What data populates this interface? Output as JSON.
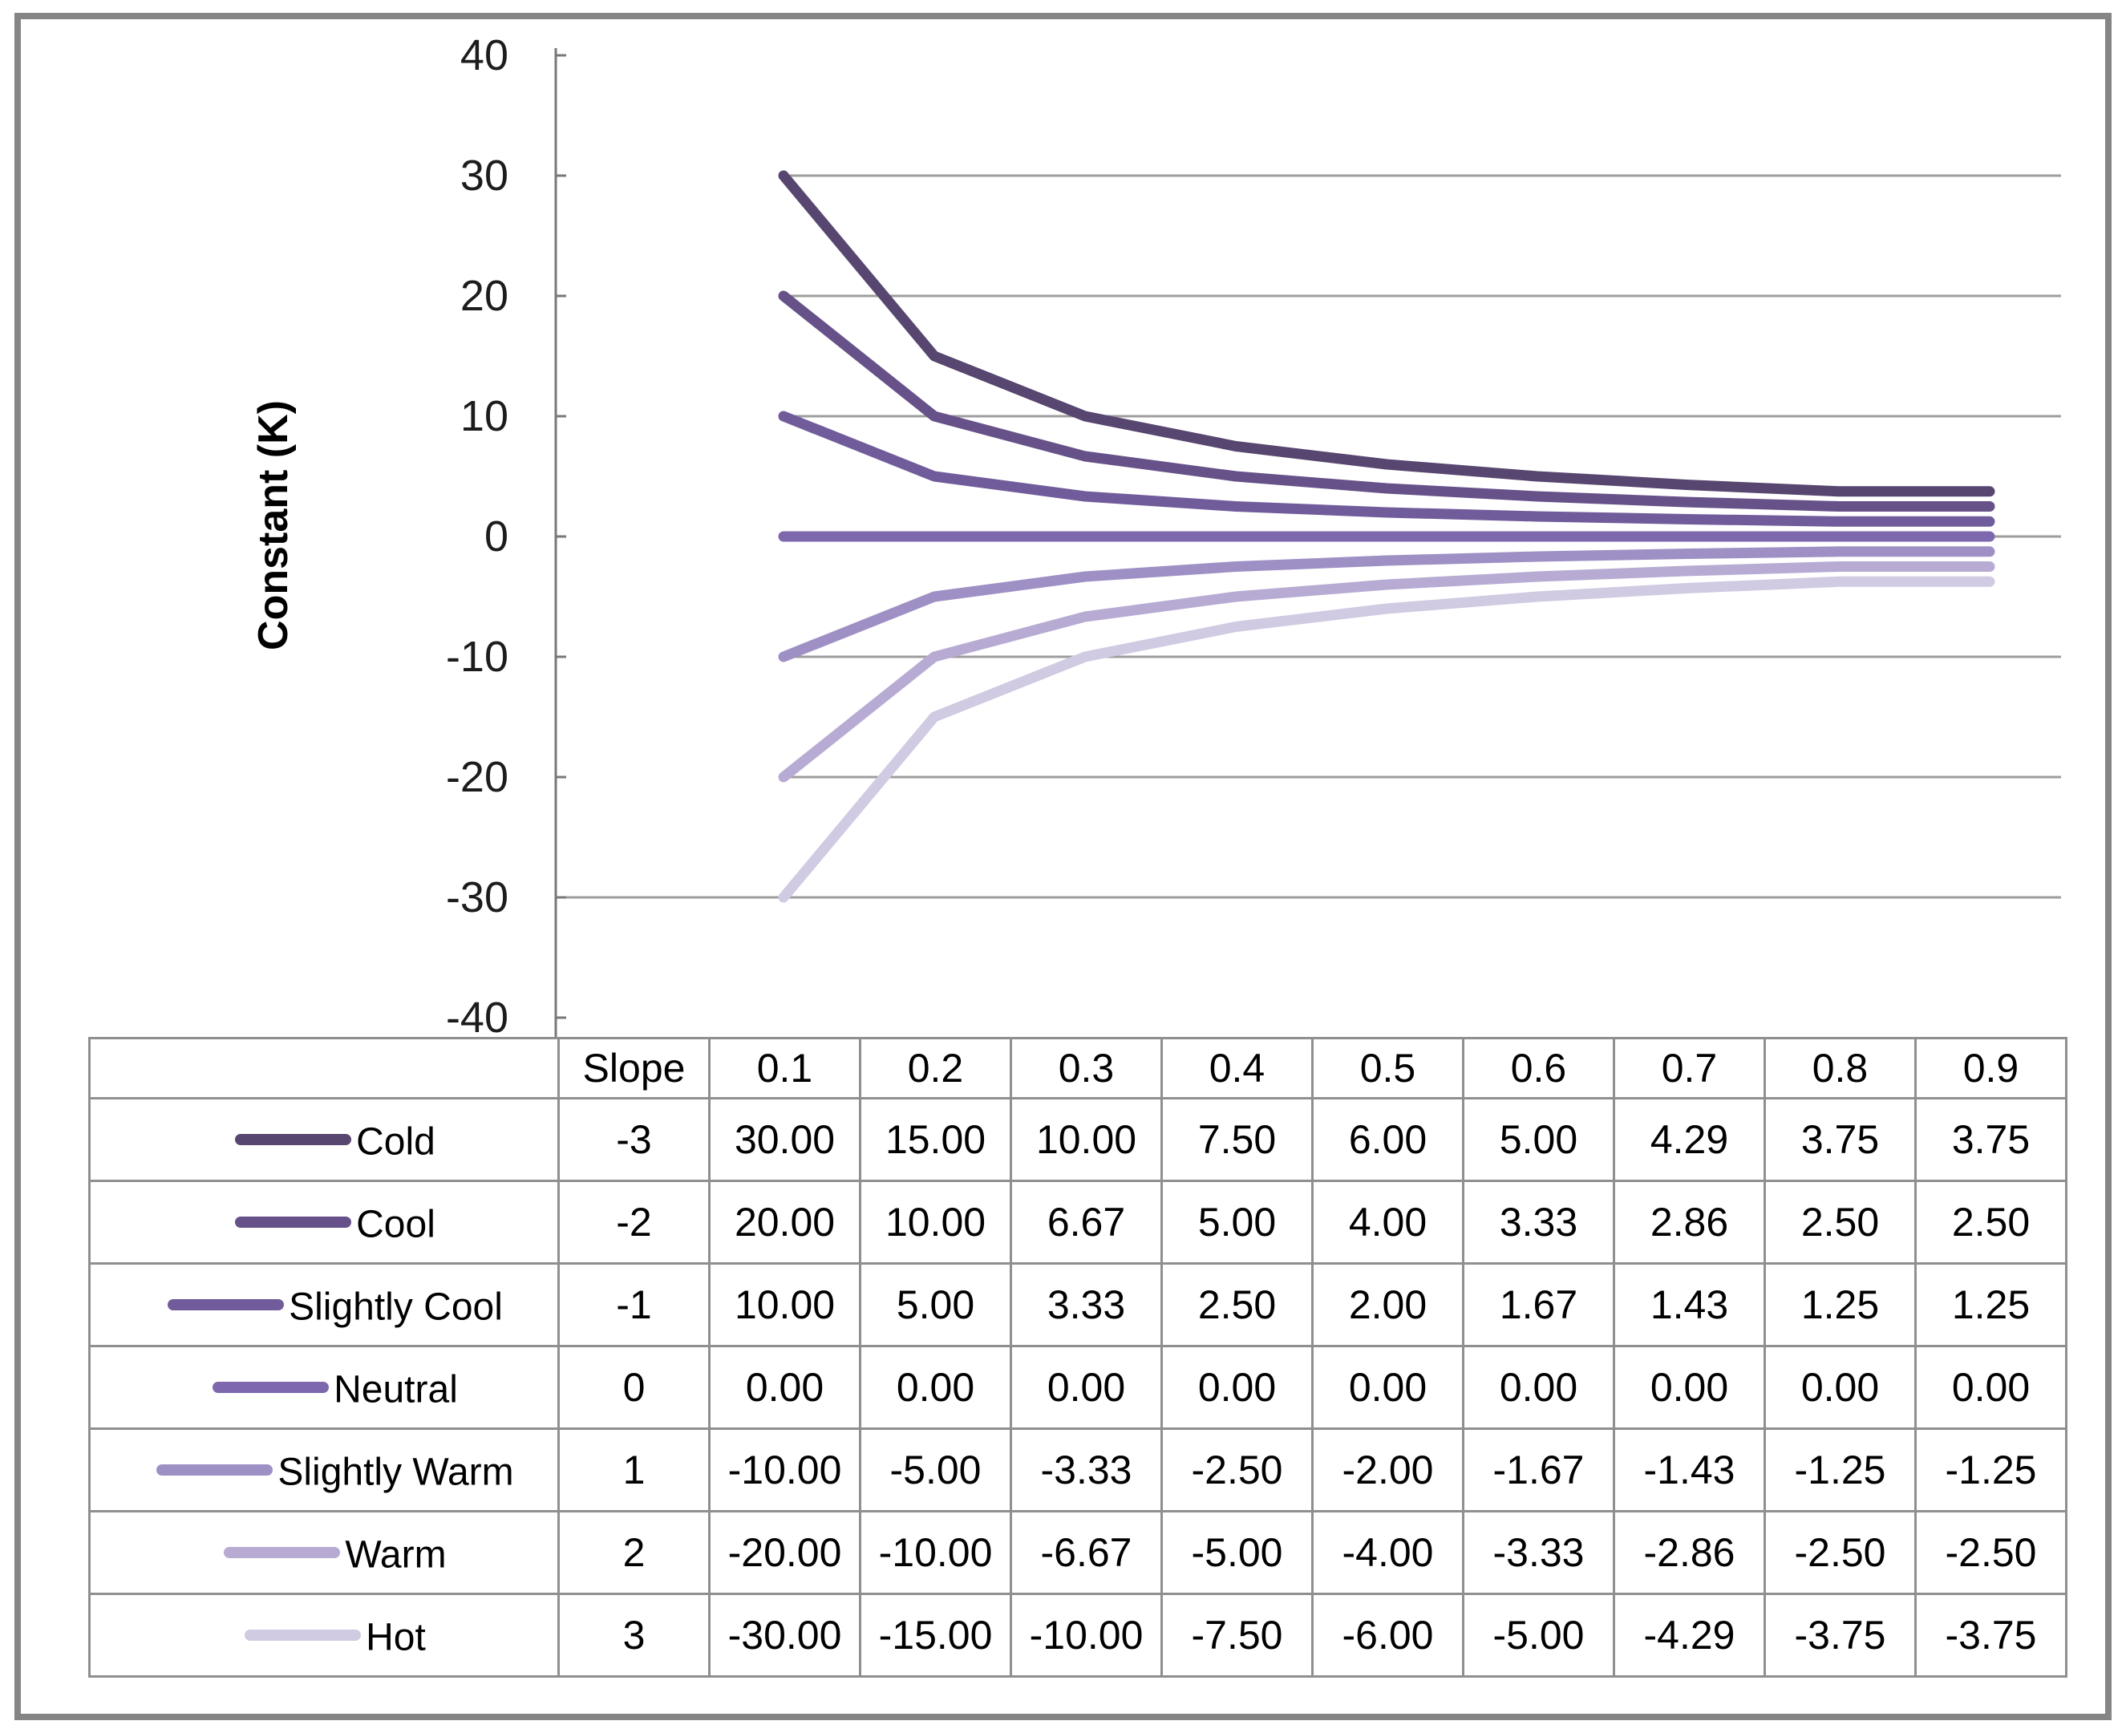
{
  "figure": {
    "y_axis_title": "Constant (K)"
  },
  "chart_data": {
    "type": "line",
    "title": "",
    "xlabel": "",
    "ylabel": "Constant (K)",
    "x": [
      0.1,
      0.2,
      0.3,
      0.4,
      0.5,
      0.6,
      0.7,
      0.8,
      0.9
    ],
    "ylim": [
      -40,
      40
    ],
    "yticks": [
      40,
      30,
      20,
      10,
      0,
      -10,
      -20,
      -30,
      -40
    ],
    "grid": true,
    "legend_position": "left-of-data-table",
    "series": [
      {
        "name": "Cold",
        "slope": -3,
        "color": "#57466f",
        "values": [
          30,
          15,
          10,
          7.5,
          6,
          5,
          4.29,
          3.75,
          3.75
        ]
      },
      {
        "name": "Cool",
        "slope": -2,
        "color": "#665289",
        "values": [
          20,
          10,
          6.67,
          5,
          4,
          3.33,
          2.86,
          2.5,
          2.5
        ]
      },
      {
        "name": "Slightly Cool",
        "slope": -1,
        "color": "#715c9b",
        "values": [
          10,
          5,
          3.33,
          2.5,
          2,
          1.67,
          1.43,
          1.25,
          1.25
        ]
      },
      {
        "name": "Neutral",
        "slope": 0,
        "color": "#7d68ae",
        "values": [
          0,
          0,
          0,
          0,
          0,
          0,
          0,
          0,
          0
        ]
      },
      {
        "name": "Slightly Warm",
        "slope": 1,
        "color": "#9e90c4",
        "values": [
          -10,
          -5,
          -3.33,
          -2.5,
          -2,
          -1.67,
          -1.43,
          -1.25,
          -1.25
        ]
      },
      {
        "name": "Warm",
        "slope": 2,
        "color": "#b7abd3",
        "values": [
          -20,
          -10,
          -6.67,
          -5,
          -4,
          -3.33,
          -2.86,
          -2.5,
          -2.5
        ]
      },
      {
        "name": "Hot",
        "slope": 3,
        "color": "#d0cae2",
        "values": [
          -30,
          -15,
          -10,
          -7.5,
          -6,
          -5,
          -4.29,
          -3.75,
          -3.75
        ]
      }
    ]
  },
  "table": {
    "header": [
      "Slope",
      "0.1",
      "0.2",
      "0.3",
      "0.4",
      "0.5",
      "0.6",
      "0.7",
      "0.8",
      "0.9"
    ],
    "rows": [
      {
        "label": "Cold",
        "slope": "-3",
        "values": [
          "30.00",
          "15.00",
          "10.00",
          "7.50",
          "6.00",
          "5.00",
          "4.29",
          "3.75",
          "3.75"
        ]
      },
      {
        "label": "Cool",
        "slope": "-2",
        "values": [
          "20.00",
          "10.00",
          "6.67",
          "5.00",
          "4.00",
          "3.33",
          "2.86",
          "2.50",
          "2.50"
        ]
      },
      {
        "label": "Slightly Cool",
        "slope": "-1",
        "values": [
          "10.00",
          "5.00",
          "3.33",
          "2.50",
          "2.00",
          "1.67",
          "1.43",
          "1.25",
          "1.25"
        ]
      },
      {
        "label": "Neutral",
        "slope": "0",
        "values": [
          "0.00",
          "0.00",
          "0.00",
          "0.00",
          "0.00",
          "0.00",
          "0.00",
          "0.00",
          "0.00"
        ]
      },
      {
        "label": "Slightly Warm",
        "slope": "1",
        "values": [
          "-10.00",
          "-5.00",
          "-3.33",
          "-2.50",
          "-2.00",
          "-1.67",
          "-1.43",
          "-1.25",
          "-1.25"
        ]
      },
      {
        "label": "Warm",
        "slope": "2",
        "values": [
          "-20.00",
          "-10.00",
          "-6.67",
          "-5.00",
          "-4.00",
          "-3.33",
          "-2.86",
          "-2.50",
          "-2.50"
        ]
      },
      {
        "label": "Hot",
        "slope": "3",
        "values": [
          "-30.00",
          "-15.00",
          "-10.00",
          "-7.50",
          "-6.00",
          "-5.00",
          "-4.29",
          "-3.75",
          "-3.75"
        ]
      }
    ]
  },
  "colors": {
    "gridline": "#9d9d9d",
    "axis": "#787878",
    "table_border": "#8f8f8f",
    "table_border_heavy": "#6f6f6f",
    "frame": "#858585",
    "text": "#000000"
  }
}
